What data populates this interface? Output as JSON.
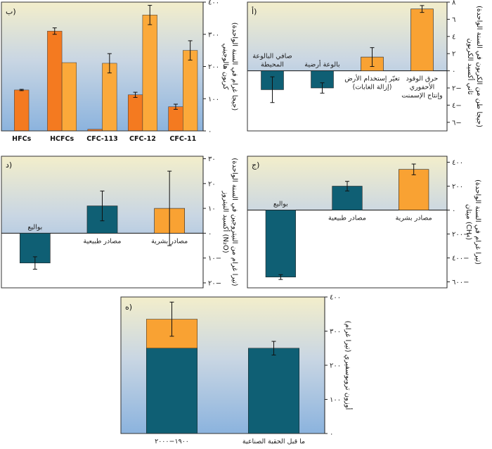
{
  "chart_data": [
    {
      "id": "a",
      "panel_label": "أ)",
      "type": "bar",
      "ylabel_lines": [
        "ثاني أكسيد الكربون",
        "(جيجا طن من الكربون في السنة الواحدة)"
      ],
      "ylim": [
        -7,
        8
      ],
      "ticks": [
        {
          "v": 8,
          "t": "٨"
        },
        {
          "v": 6,
          "t": "٦"
        },
        {
          "v": 4,
          "t": "٤"
        },
        {
          "v": 2,
          "t": "٢"
        },
        {
          "v": 0,
          "t": "٠"
        },
        {
          "v": -2,
          "t": "٢−"
        },
        {
          "v": -4,
          "t": "٤−"
        },
        {
          "v": -6,
          "t": "٦−"
        }
      ],
      "bars": [
        {
          "label_lines": [
            "صافي البالوعة",
            "المحيطة"
          ],
          "value": -2.2,
          "err": 1.5,
          "color": "teal",
          "label_pos": "above"
        },
        {
          "label_lines": [
            "بالوعة أرضية"
          ],
          "value": -2.0,
          "err": 0.6,
          "color": "teal",
          "label_pos": "above"
        },
        {
          "label_lines": [
            "تغيّر إستخدام الأرض",
            "(إزالة الغابات)"
          ],
          "value": 1.6,
          "err": 1.1,
          "color": "orange",
          "label_pos": "below"
        },
        {
          "label_lines": [
            "حرق الوقود",
            "الأحفوري",
            "وإنتاج الإسمنت"
          ],
          "value": 7.2,
          "err": 0.4,
          "color": "orange",
          "label_pos": "below"
        }
      ]
    },
    {
      "id": "b",
      "panel_label": "ب)",
      "type": "bar",
      "ylabel_lines": [
        "كربون هالوجيني",
        "(جيجا غرام في السنة الواحدة)"
      ],
      "ylim": [
        0,
        400
      ],
      "ticks": [
        {
          "v": 400,
          "t": "٤٠٠"
        },
        {
          "v": 300,
          "t": "٣٠٠"
        },
        {
          "v": 200,
          "t": "٢٠٠"
        },
        {
          "v": 100,
          "t": "١٠٠"
        },
        {
          "v": 0,
          "t": "٠"
        }
      ],
      "groups": [
        {
          "label": "HFCs",
          "bars": [
            {
              "value": 127,
              "err": 2,
              "color": "dark"
            }
          ]
        },
        {
          "label": "HCFCs",
          "bars": [
            {
              "value": 310,
              "err": 10,
              "color": "dark"
            },
            {
              "value": 212,
              "err": 0,
              "color": "light"
            }
          ]
        },
        {
          "label": "CFC-113",
          "bars": [
            {
              "value": 5,
              "err": 0,
              "color": "dark"
            },
            {
              "value": 210,
              "err": 30,
              "color": "light"
            }
          ]
        },
        {
          "label": "CFC-12",
          "bars": [
            {
              "value": 112,
              "err": 8,
              "color": "dark"
            },
            {
              "value": 360,
              "err": 30,
              "color": "light"
            }
          ]
        },
        {
          "label": "CFC-11",
          "bars": [
            {
              "value": 75,
              "err": 8,
              "color": "dark"
            },
            {
              "value": 250,
              "err": 30,
              "color": "light"
            }
          ]
        }
      ]
    },
    {
      "id": "c",
      "panel_label": "ج)",
      "type": "bar",
      "ylabel_lines": [
        "ميثان (CH₄)",
        "(تيرا غرام في السنة الواحدة)"
      ],
      "ylim": [
        -650,
        450
      ],
      "ticks": [
        {
          "v": 400,
          "t": "٤٠٠"
        },
        {
          "v": 200,
          "t": "٢٠٠"
        },
        {
          "v": 0,
          "t": "٠"
        },
        {
          "v": -200,
          "t": "٢٠٠−"
        },
        {
          "v": -400,
          "t": "٤٠٠−"
        },
        {
          "v": -600,
          "t": "٦٠٠−"
        }
      ],
      "bars": [
        {
          "label_lines": [
            "بواليع"
          ],
          "value": -560,
          "err": 20,
          "color": "teal",
          "label_pos": "above"
        },
        {
          "label_lines": [
            "مصادر طبيعية"
          ],
          "value": 200,
          "err": 40,
          "color": "teal",
          "label_pos": "below"
        },
        {
          "label_lines": [
            "مصادر بشرية"
          ],
          "value": 340,
          "err": 45,
          "color": "orange",
          "label_pos": "below"
        }
      ]
    },
    {
      "id": "d",
      "panel_label": "د)",
      "type": "bar",
      "ylabel_lines": [
        "أكسيد النيتروز (N₂O)",
        "(تيرا غرام من النيتروجين في السنة الواحدة)"
      ],
      "ylim": [
        -22,
        31
      ],
      "ticks": [
        {
          "v": 30,
          "t": "٣٠"
        },
        {
          "v": 20,
          "t": "٢٠"
        },
        {
          "v": 10,
          "t": "١٠"
        },
        {
          "v": 0,
          "t": "٠"
        },
        {
          "v": -10,
          "t": "١٠−"
        },
        {
          "v": -20,
          "t": "٢٠−"
        }
      ],
      "bars": [
        {
          "label_lines": [
            "بواليع"
          ],
          "value": -12,
          "err": 2.5,
          "color": "teal",
          "label_pos": "above"
        },
        {
          "label_lines": [
            "مصادر طبيعية"
          ],
          "value": 11,
          "err": 6,
          "color": "teal",
          "label_pos": "below"
        },
        {
          "label_lines": [
            "مصادر بشرية"
          ],
          "value": 10,
          "err": 15,
          "color": "orange",
          "label_pos": "below"
        }
      ]
    },
    {
      "id": "e",
      "panel_label": "ه)",
      "type": "bar",
      "ylabel_lines": [
        "أوزون تروبوسفيري (تيرا غرام)"
      ],
      "ylim": [
        0,
        400
      ],
      "ticks": [
        {
          "v": 400,
          "t": "٤٠٠"
        },
        {
          "v": 300,
          "t": "٣٠٠"
        },
        {
          "v": 200,
          "t": "٢٠٠"
        },
        {
          "v": 100,
          "t": "١٠٠"
        },
        {
          "v": 0,
          "t": "٠"
        }
      ],
      "bars": [
        {
          "label": "١٩٠٠−٢٠٠٠",
          "base": 250,
          "top": 335,
          "err": 50
        },
        {
          "label": "ما قبل الحقبة الصناعية",
          "base": 250,
          "top": 0,
          "err": 20
        }
      ]
    }
  ]
}
